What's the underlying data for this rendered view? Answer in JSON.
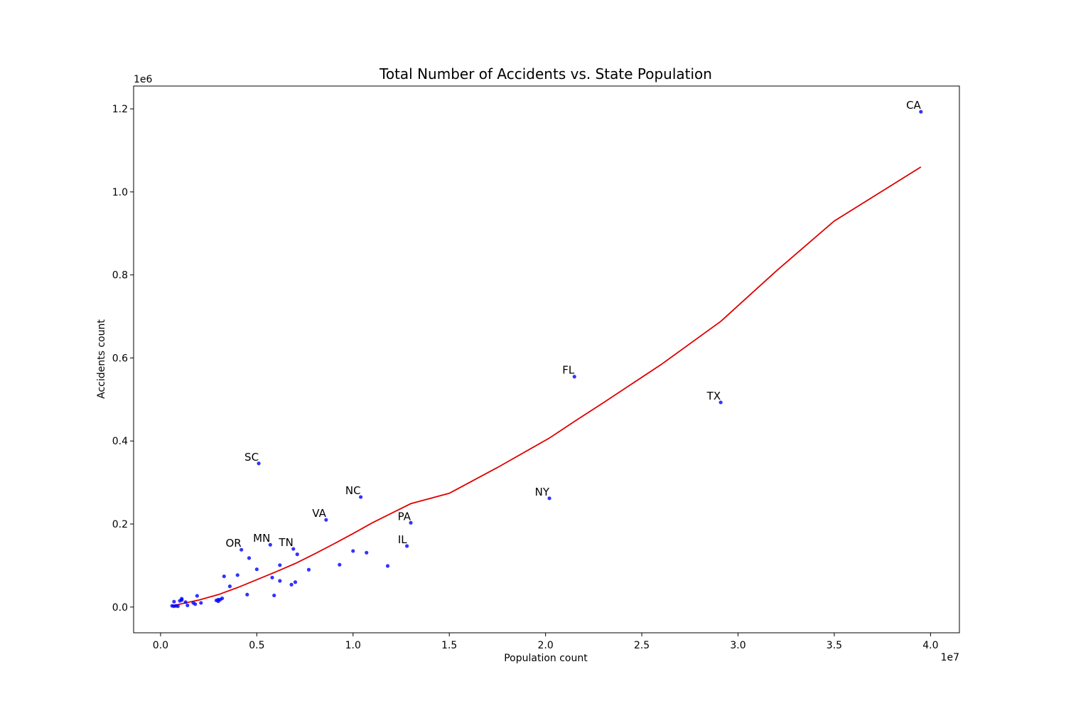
{
  "chart_data": {
    "type": "scatter",
    "title": "Total Number of Accidents vs. State Population",
    "xlabel": "Population count",
    "ylabel": "Accidents count",
    "x_multiplier_label": "1e7",
    "y_multiplier_label": "1e6",
    "x_scale": 10000000,
    "y_scale": 1000000,
    "xlim": [
      -1400000,
      41500000
    ],
    "ylim": [
      -62000,
      1255000
    ],
    "x_ticks": [
      0,
      5000000,
      10000000,
      15000000,
      20000000,
      25000000,
      30000000,
      35000000,
      40000000
    ],
    "x_tick_labels": [
      "0.0",
      "0.5",
      "1.0",
      "1.5",
      "2.0",
      "2.5",
      "3.0",
      "3.5",
      "4.0"
    ],
    "y_ticks": [
      0,
      200000,
      400000,
      600000,
      800000,
      1000000,
      1200000
    ],
    "y_tick_labels": [
      "0.0",
      "0.2",
      "0.4",
      "0.6",
      "0.8",
      "1.0",
      "1.2"
    ],
    "grid": false,
    "colors": {
      "points": "#0000ff",
      "fit_line": "#e00000",
      "frame": "#000000"
    },
    "series": [
      {
        "kind": "scatter",
        "points": [
          {
            "x": 39500000,
            "y": 1193000,
            "label": "CA"
          },
          {
            "x": 29100000,
            "y": 493000,
            "label": "TX"
          },
          {
            "x": 21500000,
            "y": 555000,
            "label": "FL"
          },
          {
            "x": 20200000,
            "y": 262000,
            "label": "NY"
          },
          {
            "x": 13000000,
            "y": 203000,
            "label": "PA"
          },
          {
            "x": 12800000,
            "y": 147000,
            "label": "IL"
          },
          {
            "x": 10400000,
            "y": 265000,
            "label": "NC"
          },
          {
            "x": 8600000,
            "y": 210000,
            "label": "VA"
          },
          {
            "x": 5100000,
            "y": 346000,
            "label": "SC"
          },
          {
            "x": 5700000,
            "y": 150000,
            "label": "MN"
          },
          {
            "x": 6900000,
            "y": 140000,
            "label": "TN"
          },
          {
            "x": 4200000,
            "y": 138000,
            "label": "OR"
          },
          {
            "x": 11800000,
            "y": 99000
          },
          {
            "x": 10700000,
            "y": 131000
          },
          {
            "x": 10000000,
            "y": 135000
          },
          {
            "x": 9300000,
            "y": 102000
          },
          {
            "x": 7700000,
            "y": 90000
          },
          {
            "x": 7100000,
            "y": 127000
          },
          {
            "x": 7000000,
            "y": 60000
          },
          {
            "x": 6800000,
            "y": 54000
          },
          {
            "x": 6200000,
            "y": 101000
          },
          {
            "x": 6200000,
            "y": 63000
          },
          {
            "x": 5900000,
            "y": 28000
          },
          {
            "x": 5800000,
            "y": 71000
          },
          {
            "x": 5000000,
            "y": 91000
          },
          {
            "x": 4600000,
            "y": 118000
          },
          {
            "x": 4500000,
            "y": 30000
          },
          {
            "x": 4000000,
            "y": 77000
          },
          {
            "x": 3600000,
            "y": 50000
          },
          {
            "x": 3300000,
            "y": 74000
          },
          {
            "x": 3200000,
            "y": 21000
          },
          {
            "x": 3100000,
            "y": 18000
          },
          {
            "x": 3000000,
            "y": 14000
          },
          {
            "x": 3000000,
            "y": 18000
          },
          {
            "x": 2900000,
            "y": 16000
          },
          {
            "x": 2100000,
            "y": 10000
          },
          {
            "x": 1900000,
            "y": 27000
          },
          {
            "x": 1800000,
            "y": 7000
          },
          {
            "x": 1700000,
            "y": 10000
          },
          {
            "x": 1400000,
            "y": 4000
          },
          {
            "x": 1300000,
            "y": 12000
          },
          {
            "x": 1100000,
            "y": 20000
          },
          {
            "x": 1100000,
            "y": 17000
          },
          {
            "x": 1000000,
            "y": 15000
          },
          {
            "x": 900000,
            "y": 2000
          },
          {
            "x": 800000,
            "y": 3000
          },
          {
            "x": 700000,
            "y": 13000
          },
          {
            "x": 700000,
            "y": 2000
          },
          {
            "x": 600000,
            "y": 3000
          }
        ]
      },
      {
        "kind": "line",
        "points": [
          {
            "x": 580000,
            "y": 2000
          },
          {
            "x": 1000000,
            "y": 7000
          },
          {
            "x": 2000000,
            "y": 17000
          },
          {
            "x": 3000000,
            "y": 30000
          },
          {
            "x": 4000000,
            "y": 47000
          },
          {
            "x": 5000000,
            "y": 66000
          },
          {
            "x": 6000000,
            "y": 85000
          },
          {
            "x": 7000000,
            "y": 105000
          },
          {
            "x": 8000000,
            "y": 128000
          },
          {
            "x": 9000000,
            "y": 152000
          },
          {
            "x": 10000000,
            "y": 177000
          },
          {
            "x": 11000000,
            "y": 203000
          },
          {
            "x": 12000000,
            "y": 226000
          },
          {
            "x": 13000000,
            "y": 249000
          },
          {
            "x": 15000000,
            "y": 274000
          },
          {
            "x": 17500000,
            "y": 336000
          },
          {
            "x": 20200000,
            "y": 407000
          },
          {
            "x": 21500000,
            "y": 447000
          },
          {
            "x": 23000000,
            "y": 492000
          },
          {
            "x": 26000000,
            "y": 584000
          },
          {
            "x": 29100000,
            "y": 688000
          },
          {
            "x": 32000000,
            "y": 810000
          },
          {
            "x": 35000000,
            "y": 930000
          },
          {
            "x": 39500000,
            "y": 1060000
          }
        ]
      }
    ]
  }
}
